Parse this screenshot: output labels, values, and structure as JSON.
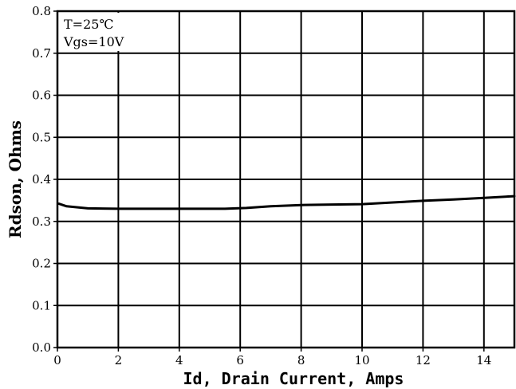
{
  "chart_data": {
    "type": "line",
    "title": "",
    "xlabel": "Id, Drain Current, Amps",
    "ylabel": "Rdson, Ohms",
    "xlim": [
      0,
      15
    ],
    "ylim": [
      0,
      0.8
    ],
    "xticks": [
      0,
      2,
      4,
      6,
      8,
      10,
      12,
      14
    ],
    "xtick_labels": [
      "0",
      "2",
      "4",
      "6",
      "8",
      "10",
      "12",
      "14"
    ],
    "yticks": [
      0,
      0.1,
      0.2,
      0.3,
      0.4,
      0.5,
      0.6,
      0.7,
      0.8
    ],
    "ytick_labels": [
      "0.0",
      "0.1",
      "0.2",
      "0.3",
      "0.4",
      "0.5",
      "0.6",
      "0.7",
      "0.8"
    ],
    "grid": true,
    "annotations": [
      "T=25℃",
      "Vgs=10V"
    ],
    "series": [
      {
        "x": [
          0.05,
          0.3,
          1.0,
          2.0,
          4.0,
          5.5,
          6.2,
          7.0,
          8.0,
          9.0,
          10.0,
          11.0,
          12.0,
          13.0,
          14.0,
          15.0
        ],
        "y": [
          0.342,
          0.336,
          0.331,
          0.33,
          0.33,
          0.33,
          0.332,
          0.336,
          0.339,
          0.34,
          0.341,
          0.345,
          0.349,
          0.352,
          0.356,
          0.36
        ]
      }
    ],
    "colors": {
      "line": "#000000",
      "grid": "#000000",
      "background": "#ffffff"
    }
  }
}
